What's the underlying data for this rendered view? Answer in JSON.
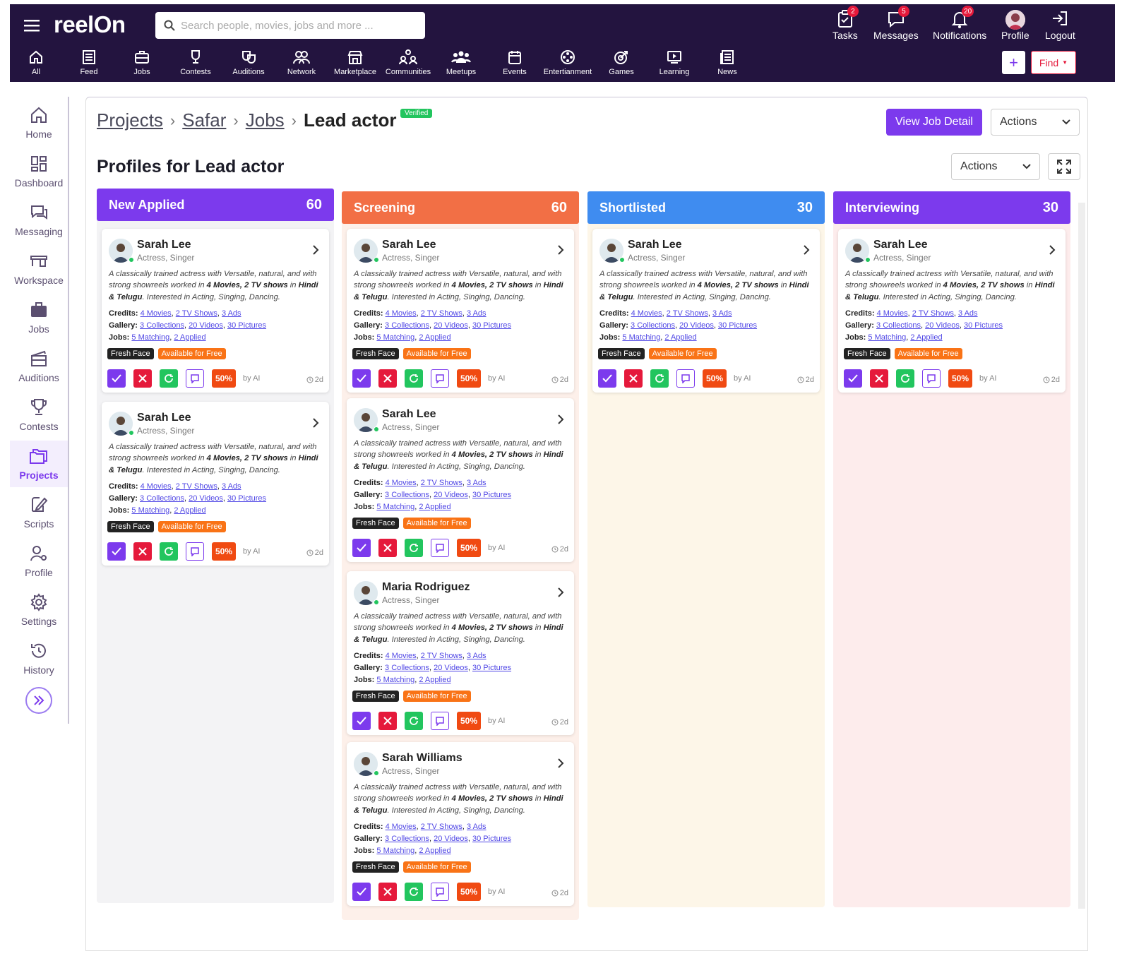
{
  "app": {
    "brand": "reelOn"
  },
  "search": {
    "placeholder": "Search people, movies, jobs and more ..."
  },
  "top_actions": [
    {
      "label": "Tasks",
      "badge": "2",
      "icon": "tasks-icon"
    },
    {
      "label": "Messages",
      "badge": "5",
      "icon": "messages-icon"
    },
    {
      "label": "Notifications",
      "badge": "20",
      "icon": "bell-icon"
    },
    {
      "label": "Profile",
      "badge": "",
      "icon": "avatar"
    },
    {
      "label": "Logout",
      "badge": "",
      "icon": "logout-icon"
    }
  ],
  "nav": [
    {
      "label": "All",
      "icon": "home-icon"
    },
    {
      "label": "Feed",
      "icon": "feed-icon"
    },
    {
      "label": "Jobs",
      "icon": "briefcase-icon"
    },
    {
      "label": "Contests",
      "icon": "trophy-icon"
    },
    {
      "label": "Auditions",
      "icon": "masks-icon"
    },
    {
      "label": "Network",
      "icon": "network-icon"
    },
    {
      "label": "Marketplace",
      "icon": "store-icon"
    },
    {
      "label": "Communities",
      "icon": "communities-icon"
    },
    {
      "label": "Meetups",
      "icon": "meetups-icon"
    },
    {
      "label": "Events",
      "icon": "calendar-icon"
    },
    {
      "label": "Entertianment",
      "icon": "film-reel-icon"
    },
    {
      "label": "Games",
      "icon": "target-icon"
    },
    {
      "label": "Learning",
      "icon": "play-screen-icon"
    },
    {
      "label": "News",
      "icon": "news-icon"
    }
  ],
  "nav_buttons": {
    "plus": "+",
    "find": "Find"
  },
  "sidebar": [
    {
      "label": "Home",
      "icon": "home-icon",
      "active": false
    },
    {
      "label": "Dashboard",
      "icon": "dashboard-icon",
      "active": false
    },
    {
      "label": "Messaging",
      "icon": "messaging-icon",
      "active": false
    },
    {
      "label": "Workspace",
      "icon": "workspace-icon",
      "active": false
    },
    {
      "label": "Jobs",
      "icon": "briefcase-icon",
      "active": false
    },
    {
      "label": "Auditions",
      "icon": "auditions-icon",
      "active": false
    },
    {
      "label": "Contests",
      "icon": "trophy-icon",
      "active": false
    },
    {
      "label": "Projects",
      "icon": "folder-icon",
      "active": true
    },
    {
      "label": "Scripts",
      "icon": "script-icon",
      "active": false
    },
    {
      "label": "Profile",
      "icon": "profile-icon",
      "active": false
    },
    {
      "label": "Settings",
      "icon": "gear-icon",
      "active": false
    },
    {
      "label": "History",
      "icon": "history-icon",
      "active": false
    }
  ],
  "breadcrumb": [
    "Projects",
    "Safar",
    "Jobs"
  ],
  "current": "Lead actor",
  "verified": "Verified",
  "buttons": {
    "view_job": "View Job Detail",
    "actions": "Actions"
  },
  "page_title": "Profiles for Lead actor",
  "card_labels": {
    "credits": "Credits:",
    "gallery": "Gallery:",
    "jobs": "Jobs:",
    "credit_links": [
      "4 Movies",
      "2 TV Shows",
      "3 Ads"
    ],
    "gallery_links": [
      "3 Collections",
      "20 Videos",
      "30 Pictures"
    ],
    "job_links": [
      "5 Matching",
      "2 Applied"
    ],
    "tag1": "Fresh Face",
    "tag2": "Available for Free",
    "percent": "50%",
    "byai": "by AI",
    "age": "2d",
    "desc": [
      "A classically trained actress with Versatile, natural, and with strong showreels worked in ",
      "4 Movies, 2 TV shows",
      " in ",
      "Hindi & Telugu",
      ". Interested in Acting, Singing, Dancing."
    ]
  },
  "columns": [
    {
      "title": "New Applied",
      "count": "60",
      "color": "#7c3aed",
      "bg": "#f3f3f5",
      "cards": [
        {
          "name": "Sarah Lee",
          "role": "Actress, Singer"
        },
        {
          "name": "Sarah Lee",
          "role": "Actress, Singer"
        }
      ]
    },
    {
      "title": "Screening",
      "count": "60",
      "color": "#f26f45",
      "bg": "#fdf0ea",
      "cards": [
        {
          "name": "Sarah Lee",
          "role": "Actress, Singer"
        },
        {
          "name": "Sarah Lee",
          "role": "Actress, Singer"
        },
        {
          "name": "Maria Rodriguez",
          "role": "Actress, Singer"
        },
        {
          "name": "Sarah Williams",
          "role": "Actress, Singer"
        }
      ]
    },
    {
      "title": "Shortlisted",
      "count": "30",
      "color": "#3f8cf0",
      "bg": "#fdf6e8",
      "cards": [
        {
          "name": "Sarah Lee",
          "role": "Actress, Singer"
        }
      ]
    },
    {
      "title": "Interviewing",
      "count": "30",
      "color": "#7c3aed",
      "bg": "#fdecec",
      "cards": [
        {
          "name": "Sarah Lee",
          "role": "Actress, Singer"
        }
      ]
    }
  ]
}
